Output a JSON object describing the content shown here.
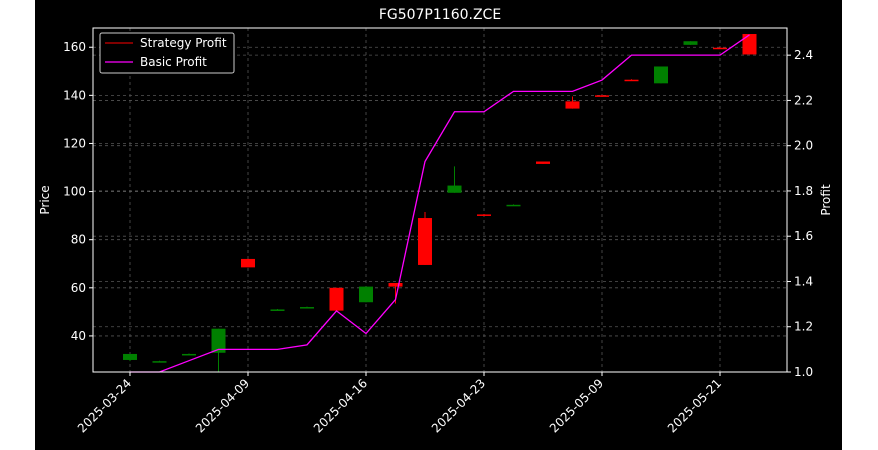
{
  "chart_data": {
    "type": "candlestick",
    "title": "FG507P1160.ZCE",
    "xlabel": "",
    "ylabel_left": "Price",
    "ylabel_right": "Profit",
    "ylim_left": [
      25,
      168
    ],
    "ylim_right": [
      1.0,
      2.52
    ],
    "yticks_left": [
      40,
      60,
      80,
      100,
      120,
      140,
      160
    ],
    "yticks_right": [
      1.0,
      1.2,
      1.4,
      1.6,
      1.8,
      2.0,
      2.2,
      2.4
    ],
    "xticks": [
      {
        "index": 0,
        "label": "2025-03-24"
      },
      {
        "index": 4,
        "label": "2025-04-09"
      },
      {
        "index": 8,
        "label": "2025-04-16"
      },
      {
        "index": 12,
        "label": "2025-04-23"
      },
      {
        "index": 16,
        "label": "2025-05-09"
      },
      {
        "index": 20,
        "label": "2025-05-21"
      }
    ],
    "grid": true,
    "legend_position": "upper-left",
    "colors": {
      "background": "#000000",
      "up": "#008000",
      "down": "#ff0000",
      "strategy": "#ff0000",
      "basic": "#ff00ff",
      "grid": "#555555",
      "axes": "#ffffff"
    },
    "candles": [
      {
        "i": 0,
        "open": 30,
        "high": 32.5,
        "low": 29.5,
        "close": 32.5
      },
      {
        "i": 1,
        "open": 29.5,
        "high": 29.7,
        "low": 29.3,
        "close": 29.5
      },
      {
        "i": 2,
        "open": 32.5,
        "high": 32.7,
        "low": 32.3,
        "close": 32.5
      },
      {
        "i": 3,
        "open": 33,
        "high": 43,
        "low": 25,
        "close": 43
      },
      {
        "i": 4,
        "open": 72,
        "high": 72,
        "low": 68.5,
        "close": 68.5
      },
      {
        "i": 5,
        "open": 51,
        "high": 51.2,
        "low": 50.8,
        "close": 51
      },
      {
        "i": 6,
        "open": 52,
        "high": 52.2,
        "low": 51.8,
        "close": 52
      },
      {
        "i": 7,
        "open": 60,
        "high": 60,
        "low": 50.5,
        "close": 50.5
      },
      {
        "i": 8,
        "open": 54,
        "high": 60.5,
        "low": 54,
        "close": 60.5
      },
      {
        "i": 9,
        "open": 62,
        "high": 62,
        "low": 53.5,
        "close": 60.5
      },
      {
        "i": 10,
        "open": 89,
        "high": 91.5,
        "low": 69.5,
        "close": 69.5
      },
      {
        "i": 11,
        "open": 99.5,
        "high": 110.5,
        "low": 99.5,
        "close": 102.5
      },
      {
        "i": 12,
        "open": 90.5,
        "high": 90.7,
        "low": 90,
        "close": 90
      },
      {
        "i": 13,
        "open": 94.5,
        "high": 94.7,
        "low": 94.3,
        "close": 94.5
      },
      {
        "i": 14,
        "open": 112.5,
        "high": 112.5,
        "low": 111.5,
        "close": 111.5
      },
      {
        "i": 15,
        "open": 137.5,
        "high": 139.5,
        "low": 134.5,
        "close": 134.5
      },
      {
        "i": 16,
        "open": 140,
        "high": 140.2,
        "low": 139.6,
        "close": 139.8
      },
      {
        "i": 17,
        "open": 146.5,
        "high": 146.7,
        "low": 146.1,
        "close": 146.3
      },
      {
        "i": 18,
        "open": 145,
        "high": 152,
        "low": 145,
        "close": 152
      },
      {
        "i": 19,
        "open": 161,
        "high": 162.5,
        "low": 161,
        "close": 162.5
      },
      {
        "i": 20,
        "open": 159.8,
        "high": 160,
        "low": 159.4,
        "close": 159.6
      },
      {
        "i": 21,
        "open": 165.5,
        "high": 165.5,
        "low": 157,
        "close": 157
      }
    ],
    "series": [
      {
        "name": "Strategy Profit",
        "values": []
      },
      {
        "name": "Basic Profit",
        "x": [
          0,
          1,
          2,
          3,
          4,
          5,
          6,
          7,
          8,
          9,
          10,
          11,
          12,
          13,
          14,
          15,
          16,
          17,
          18,
          19,
          20,
          21
        ],
        "values": [
          1.0,
          1.0,
          1.05,
          1.1,
          1.1,
          1.1,
          1.12,
          1.27,
          1.17,
          1.32,
          1.93,
          2.15,
          2.15,
          2.24,
          2.24,
          2.24,
          2.29,
          2.4,
          2.4,
          2.4,
          2.4,
          2.49
        ]
      }
    ]
  }
}
